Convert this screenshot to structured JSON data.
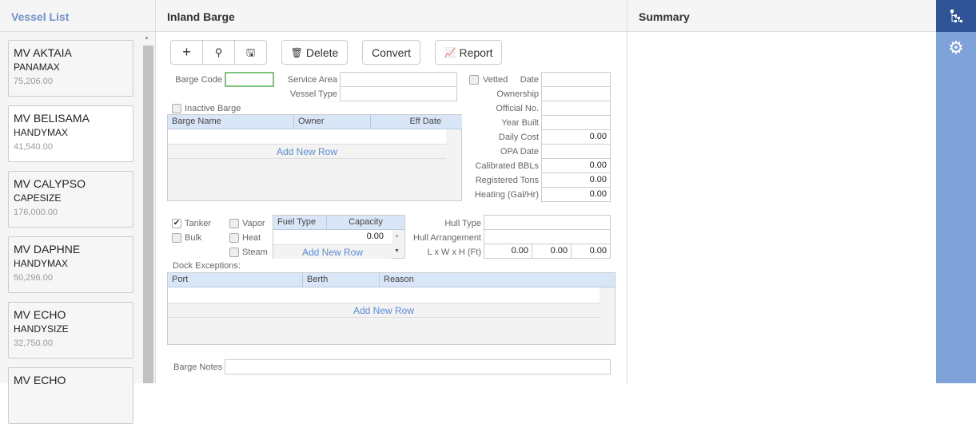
{
  "left": {
    "title": "Vessel List",
    "vessels": [
      {
        "name": "MV AKTAIA",
        "type": "PANAMAX",
        "value": "75,206.00"
      },
      {
        "name": "MV BELISAMA",
        "type": "HANDYMAX",
        "value": "41,540.00"
      },
      {
        "name": "MV CALYPSO",
        "type": "CAPESIZE",
        "value": "176,000.00"
      },
      {
        "name": "MV DAPHNE",
        "type": "HANDYMAX",
        "value": "50,296.00"
      },
      {
        "name": "MV ECHO",
        "type": "HANDYSIZE",
        "value": "32,750.00"
      },
      {
        "name": "MV ECHO",
        "type": "",
        "value": ""
      }
    ]
  },
  "main": {
    "title": "Inland Barge",
    "toolbar": {
      "delete": "Delete",
      "convert": "Convert",
      "report": "Report"
    },
    "fields": {
      "barge_code": "Barge Code",
      "service_area": "Service Area",
      "vessel_type": "Vessel Type",
      "vetted": "Vetted",
      "inactive": "Inactive Barge"
    },
    "right_fields": [
      {
        "label": "Date",
        "value": ""
      },
      {
        "label": "Ownership",
        "value": ""
      },
      {
        "label": "Official No.",
        "value": ""
      },
      {
        "label": "Year Built",
        "value": ""
      },
      {
        "label": "Daily Cost",
        "value": "0.00"
      },
      {
        "label": "OPA Date",
        "value": ""
      },
      {
        "label": "Calibrated BBLs",
        "value": "0.00"
      },
      {
        "label": "Registered Tons",
        "value": "0.00"
      },
      {
        "label": "Heating (Gal/Hr)",
        "value": "0.00"
      }
    ],
    "barge_grid": {
      "columns": [
        "Barge Name",
        "Owner",
        "Eff Date"
      ],
      "add": "Add New Row"
    },
    "types": {
      "tanker": "Tanker",
      "bulk": "Bulk",
      "vapor": "Vapor",
      "heat": "Heat",
      "steam": "Steam"
    },
    "fuel_grid": {
      "columns": [
        "Fuel Type",
        "Capacity"
      ],
      "capacity": "0.00",
      "add": "Add New Row"
    },
    "hull": {
      "type": "Hull Type",
      "arrangement": "Hull Arrangement",
      "dims": "L x W x H (Ft)",
      "l": "0.00",
      "w": "0.00",
      "h": "0.00"
    },
    "dock": {
      "label": "Dock Exceptions:",
      "columns": [
        "Port",
        "Berth",
        "Reason"
      ],
      "add": "Add New Row"
    },
    "notes": "Barge Notes"
  },
  "summary": {
    "title": "Summary"
  },
  "colors": {
    "sidebar_dark": "#2f5597",
    "sidebar_light": "#7fa3d9",
    "accent": "#5b8bd1"
  }
}
